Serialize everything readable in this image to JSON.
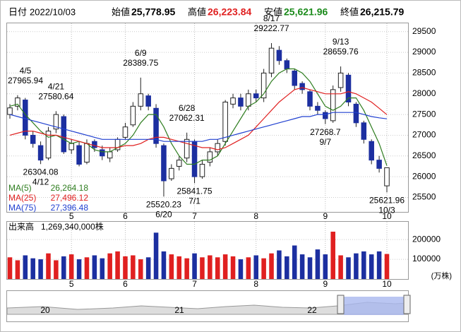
{
  "header": {
    "date_label": "日付",
    "date": "2022/10/03",
    "open_label": "始値",
    "open": "25,778.95",
    "high_label": "高値",
    "high": "26,223.84",
    "low_label": "安値",
    "low": "25,621.96",
    "close_label": "終値",
    "close": "26,215.79"
  },
  "chart_data": {
    "type": "candlestick",
    "categories": [
      null,
      null,
      null,
      null,
      null,
      null,
      null,
      null,
      "5",
      null,
      null,
      null,
      null,
      null,
      null,
      "6",
      null,
      null,
      null,
      null,
      null,
      null,
      null,
      null,
      "7",
      null,
      null,
      null,
      null,
      null,
      null,
      null,
      "8",
      null,
      null,
      null,
      null,
      null,
      null,
      null,
      null,
      "9",
      null,
      null,
      null,
      null,
      null,
      null,
      null,
      "10"
    ],
    "open": [
      27500,
      27700,
      27850,
      27000,
      26750,
      26450,
      27150,
      27450,
      26650,
      26750,
      26350,
      26850,
      26650,
      26450,
      26650,
      26950,
      27250,
      27700,
      27950,
      27650,
      26750,
      25950,
      26250,
      26450,
      26850,
      26000,
      26350,
      26600,
      26850,
      27750,
      27900,
      27700,
      28000,
      27900,
      28500,
      29050,
      28800,
      28550,
      28250,
      28050,
      27700,
      27550,
      27350,
      28150,
      28450,
      27750,
      27300,
      26850,
      26400,
      25778.95
    ],
    "high": [
      27750,
      27965.94,
      27900,
      27100,
      26850,
      27200,
      27580.64,
      27500,
      26900,
      26850,
      26900,
      26900,
      26750,
      26700,
      26950,
      27300,
      27800,
      28389.75,
      28000,
      27750,
      26800,
      26300,
      26500,
      27062.31,
      26900,
      26400,
      26700,
      26900,
      27850,
      28000,
      28000,
      28100,
      28100,
      28600,
      29222.77,
      29150,
      28850,
      28600,
      28300,
      28100,
      27800,
      27600,
      28200,
      28659.76,
      28500,
      27800,
      27350,
      26900,
      26500,
      26223.84
    ],
    "low": [
      27400,
      27600,
      26900,
      26700,
      26304.08,
      26400,
      27050,
      26550,
      26550,
      26250,
      26300,
      26600,
      26400,
      26350,
      26600,
      26900,
      27200,
      27600,
      27600,
      26700,
      25520.23,
      25900,
      26150,
      26350,
      25841.75,
      25950,
      26250,
      26500,
      26750,
      27650,
      27600,
      27600,
      27800,
      27800,
      28400,
      28700,
      28500,
      28100,
      28000,
      27600,
      27500,
      27268.7,
      27300,
      28050,
      27700,
      27200,
      26800,
      26300,
      26100,
      25621.96
    ],
    "close": [
      27660,
      27900,
      27000,
      26800,
      26400,
      27100,
      27500,
      26600,
      26800,
      26300,
      26800,
      26700,
      26500,
      26600,
      26900,
      27200,
      27700,
      28000,
      27700,
      26800,
      25900,
      26200,
      26400,
      26900,
      26000,
      26300,
      26600,
      26800,
      27800,
      27900,
      27700,
      28000,
      27900,
      28500,
      29100,
      28800,
      28600,
      28200,
      28100,
      27700,
      27600,
      27400,
      28100,
      28500,
      27800,
      27300,
      26900,
      26400,
      26200,
      26215.79
    ],
    "up_color": "#ffffff",
    "down_color": "#1c2fa0",
    "ylim": [
      25150,
      29700
    ],
    "yticks": [
      25500,
      26000,
      26500,
      27000,
      27500,
      28000,
      28500,
      29000,
      29500
    ],
    "ma": [
      {
        "name": "MA(5)",
        "label": "26,264.18",
        "color": "#2e7d1f",
        "values": [
          27700,
          27750,
          27500,
          27300,
          27100,
          26950,
          27000,
          26900,
          26800,
          26850,
          26800,
          26650,
          26600,
          26600,
          26700,
          26800,
          27000,
          27300,
          27500,
          27500,
          27200,
          26800,
          26500,
          26300,
          26300,
          26400,
          26400,
          26500,
          26800,
          27100,
          27400,
          27700,
          27800,
          28000,
          28300,
          28500,
          28600,
          28600,
          28500,
          28300,
          28000,
          27700,
          27600,
          27700,
          27900,
          27900,
          27600,
          27200,
          26800,
          26264.18
        ]
      },
      {
        "name": "MA(25)",
        "label": "27,496.12",
        "color": "#e02020",
        "values": [
          27000,
          27050,
          27100,
          27100,
          27050,
          27000,
          27000,
          26950,
          26900,
          26850,
          26800,
          26750,
          26700,
          26700,
          26700,
          26750,
          26750,
          26800,
          26900,
          26950,
          26950,
          26900,
          26850,
          26800,
          26750,
          26700,
          26700,
          26650,
          26700,
          26800,
          26900,
          27000,
          27200,
          27400,
          27600,
          27800,
          27950,
          28100,
          28150,
          28100,
          28050,
          28000,
          28000,
          28000,
          28050,
          28000,
          27900,
          27800,
          27650,
          27496.12
        ]
      },
      {
        "name": "MA(75)",
        "label": "27,396.48",
        "color": "#2040d0",
        "values": [
          27500,
          27450,
          27400,
          27350,
          27300,
          27250,
          27200,
          27150,
          27100,
          27050,
          27000,
          26950,
          26900,
          26900,
          26900,
          26900,
          26900,
          26900,
          26900,
          26900,
          26850,
          26850,
          26850,
          26850,
          26850,
          26850,
          26900,
          26900,
          26950,
          27000,
          27050,
          27100,
          27150,
          27200,
          27250,
          27300,
          27350,
          27400,
          27450,
          27450,
          27500,
          27500,
          27550,
          27550,
          27550,
          27550,
          27500,
          27450,
          27420,
          27396.48
        ]
      }
    ],
    "annotations": [
      {
        "date": "4/5",
        "value": 27965.94,
        "kind": "high"
      },
      {
        "date": "4/12",
        "value": 26304.08,
        "kind": "low"
      },
      {
        "date": "4/21",
        "value": 27580.64,
        "kind": "high"
      },
      {
        "date": "6/9",
        "value": 28389.75,
        "kind": "high"
      },
      {
        "date": "6/20",
        "value": 25520.23,
        "kind": "low"
      },
      {
        "date": "6/28",
        "value": 27062.31,
        "kind": "high"
      },
      {
        "date": "7/1",
        "value": 25841.75,
        "kind": "low"
      },
      {
        "date": "8/17",
        "value": 29222.77,
        "kind": "high"
      },
      {
        "date": "9/7",
        "value": 27268.7,
        "kind": "low"
      },
      {
        "date": "9/13",
        "value": 28659.76,
        "kind": "high"
      },
      {
        "date": "10/3",
        "value": 25621.96,
        "kind": "low"
      }
    ],
    "volume": {
      "title": "出来高",
      "label": "1,269,340,000株",
      "unit": "(万株)",
      "up_color": "#e02020",
      "down_color": "#1c2fa0",
      "values": [
        110000,
        95000,
        120000,
        105000,
        100000,
        130000,
        95000,
        115000,
        125000,
        100000,
        110000,
        120000,
        105000,
        130000,
        140000,
        115000,
        120000,
        100000,
        110000,
        235000,
        140000,
        125000,
        115000,
        105000,
        130000,
        110000,
        120000,
        110000,
        125000,
        115000,
        100000,
        110000,
        120000,
        105000,
        130000,
        145000,
        115000,
        170000,
        125000,
        110000,
        150000,
        125000,
        240000,
        120000,
        110000,
        130000,
        140000,
        125000,
        140000,
        126934
      ],
      "ylim": [
        0,
        290000
      ],
      "yticks": [
        100000,
        200000
      ]
    }
  },
  "navigator": {
    "labels": [
      "20",
      "21",
      "22"
    ]
  }
}
